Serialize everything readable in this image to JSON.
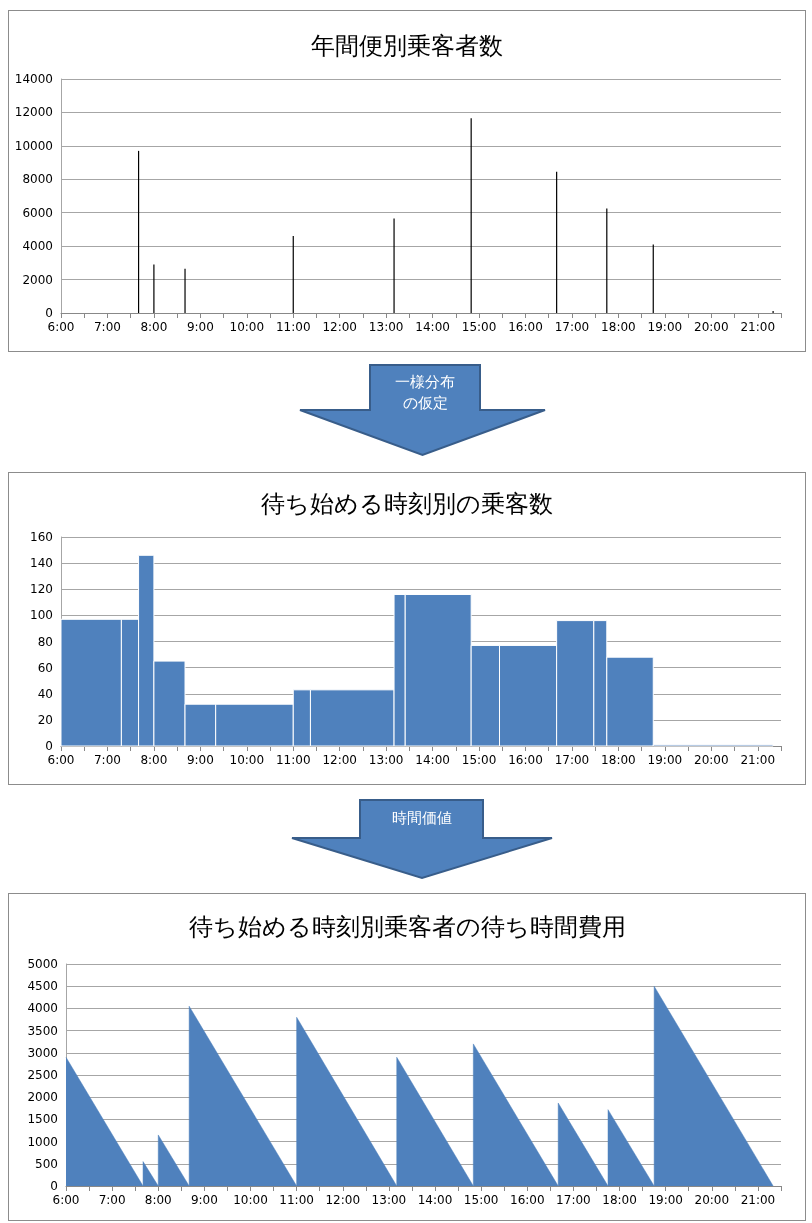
{
  "chart_data": [
    {
      "type": "bar",
      "title": "年間便別乗客者数",
      "color": "#000000",
      "x": [
        7.67,
        8.0,
        8.67,
        11.0,
        13.17,
        14.83,
        16.67,
        17.75,
        18.75,
        21.33
      ],
      "values": [
        9700,
        2900,
        2650,
        4600,
        5650,
        11650,
        8450,
        6250,
        4100,
        120
      ],
      "xlim": [
        6,
        21.5
      ],
      "xticks": [
        {
          "value": 6,
          "label": "6:00"
        },
        {
          "value": 6.5,
          "label": null
        },
        {
          "value": 7,
          "label": "7:00"
        },
        {
          "value": 7.5,
          "label": null
        },
        {
          "value": 8,
          "label": "8:00"
        },
        {
          "value": 8.5,
          "label": null
        },
        {
          "value": 9,
          "label": "9:00"
        },
        {
          "value": 9.5,
          "label": null
        },
        {
          "value": 10,
          "label": "10:00"
        },
        {
          "value": 10.5,
          "label": null
        },
        {
          "value": 11,
          "label": "11:00"
        },
        {
          "value": 11.5,
          "label": null
        },
        {
          "value": 12,
          "label": "12:00"
        },
        {
          "value": 12.5,
          "label": null
        },
        {
          "value": 13,
          "label": "13:00"
        },
        {
          "value": 13.5,
          "label": null
        },
        {
          "value": 14,
          "label": "14:00"
        },
        {
          "value": 14.5,
          "label": null
        },
        {
          "value": 15,
          "label": "15:00"
        },
        {
          "value": 15.5,
          "label": null
        },
        {
          "value": 16,
          "label": "16:00"
        },
        {
          "value": 16.5,
          "label": null
        },
        {
          "value": 17,
          "label": "17:00"
        },
        {
          "value": 17.5,
          "label": null
        },
        {
          "value": 18,
          "label": "18:00"
        },
        {
          "value": 18.5,
          "label": null
        },
        {
          "value": 19,
          "label": "19:00"
        },
        {
          "value": 19.5,
          "label": null
        },
        {
          "value": 20,
          "label": "20:00"
        },
        {
          "value": 20.5,
          "label": null
        },
        {
          "value": 21,
          "label": "21:00"
        },
        {
          "value": 21.5,
          "label": null
        }
      ],
      "ylim": [
        0,
        14000
      ],
      "yticks": [
        0,
        2000,
        4000,
        6000,
        8000,
        10000,
        12000,
        14000
      ],
      "grid": "y"
    },
    {
      "type": "histogram",
      "title": "待ち始める時刻別の乗客数",
      "color": "#4f81bd",
      "annotations": [
        "一様分布の仮定"
      ],
      "bins": [
        6.0,
        7.3,
        7.67,
        8.0,
        8.67,
        9.33,
        11.0,
        11.37,
        13.17,
        13.41,
        14.83,
        15.44,
        16.67,
        17.47,
        17.75,
        18.75,
        21.33
      ],
      "values": [
        97,
        97,
        146,
        65,
        32,
        32,
        43,
        43,
        116,
        116,
        77,
        77,
        96,
        96,
        68,
        1
      ],
      "xlim": [
        6,
        21.5
      ],
      "xticks": [
        {
          "value": 6,
          "label": "6:00"
        },
        {
          "value": 6.5,
          "label": null
        },
        {
          "value": 7,
          "label": "7:00"
        },
        {
          "value": 7.5,
          "label": null
        },
        {
          "value": 8,
          "label": "8:00"
        },
        {
          "value": 8.5,
          "label": null
        },
        {
          "value": 9,
          "label": "9:00"
        },
        {
          "value": 9.5,
          "label": null
        },
        {
          "value": 10,
          "label": "10:00"
        },
        {
          "value": 10.5,
          "label": null
        },
        {
          "value": 11,
          "label": "11:00"
        },
        {
          "value": 11.5,
          "label": null
        },
        {
          "value": 12,
          "label": "12:00"
        },
        {
          "value": 12.5,
          "label": null
        },
        {
          "value": 13,
          "label": "13:00"
        },
        {
          "value": 13.5,
          "label": null
        },
        {
          "value": 14,
          "label": "14:00"
        },
        {
          "value": 14.5,
          "label": null
        },
        {
          "value": 15,
          "label": "15:00"
        },
        {
          "value": 15.5,
          "label": null
        },
        {
          "value": 16,
          "label": "16:00"
        },
        {
          "value": 16.5,
          "label": null
        },
        {
          "value": 17,
          "label": "17:00"
        },
        {
          "value": 17.5,
          "label": null
        },
        {
          "value": 18,
          "label": "18:00"
        },
        {
          "value": 18.5,
          "label": null
        },
        {
          "value": 19,
          "label": "19:00"
        },
        {
          "value": 19.5,
          "label": null
        },
        {
          "value": 20,
          "label": "20:00"
        },
        {
          "value": 20.5,
          "label": null
        },
        {
          "value": 21,
          "label": "21:00"
        },
        {
          "value": 21.5,
          "label": null
        }
      ],
      "ylim": [
        0,
        160
      ],
      "yticks": [
        0,
        20,
        40,
        60,
        80,
        100,
        120,
        140,
        160
      ],
      "grid": "y"
    },
    {
      "type": "area",
      "title": "待ち始める時刻別乗客者の待ち時間費用",
      "color": "#4f81bd",
      "annotations": [
        "時間価値"
      ],
      "x": [
        6.0,
        7.67,
        7.67,
        8.0,
        8.0,
        8.67,
        8.67,
        11.0,
        11.0,
        13.17,
        13.17,
        14.83,
        14.83,
        16.67,
        16.67,
        17.75,
        17.75,
        18.75,
        18.75,
        21.33
      ],
      "values": [
        2900,
        0,
        550,
        0,
        1150,
        0,
        4050,
        0,
        3800,
        0,
        2900,
        0,
        3200,
        0,
        1870,
        0,
        1720,
        0,
        4500,
        0
      ],
      "xlim": [
        6,
        21.5
      ],
      "xticks": [
        {
          "value": 6,
          "label": "6:00"
        },
        {
          "value": 6.5,
          "label": null
        },
        {
          "value": 7,
          "label": "7:00"
        },
        {
          "value": 7.5,
          "label": null
        },
        {
          "value": 8,
          "label": "8:00"
        },
        {
          "value": 8.5,
          "label": null
        },
        {
          "value": 9,
          "label": "9:00"
        },
        {
          "value": 9.5,
          "label": null
        },
        {
          "value": 10,
          "label": "10:00"
        },
        {
          "value": 10.5,
          "label": null
        },
        {
          "value": 11,
          "label": "11:00"
        },
        {
          "value": 11.5,
          "label": null
        },
        {
          "value": 12,
          "label": "12:00"
        },
        {
          "value": 12.5,
          "label": null
        },
        {
          "value": 13,
          "label": "13:00"
        },
        {
          "value": 13.5,
          "label": null
        },
        {
          "value": 14,
          "label": "14:00"
        },
        {
          "value": 14.5,
          "label": null
        },
        {
          "value": 15,
          "label": "15:00"
        },
        {
          "value": 15.5,
          "label": null
        },
        {
          "value": 16,
          "label": "16:00"
        },
        {
          "value": 16.5,
          "label": null
        },
        {
          "value": 17,
          "label": "17:00"
        },
        {
          "value": 17.5,
          "label": null
        },
        {
          "value": 18,
          "label": "18:00"
        },
        {
          "value": 18.5,
          "label": null
        },
        {
          "value": 19,
          "label": "19:00"
        },
        {
          "value": 19.5,
          "label": null
        },
        {
          "value": 20,
          "label": "20:00"
        },
        {
          "value": 20.5,
          "label": null
        },
        {
          "value": 21,
          "label": "21:00"
        },
        {
          "value": 21.5,
          "label": null
        }
      ],
      "ylim": [
        0,
        5000
      ],
      "yticks": [
        0,
        500,
        1000,
        1500,
        2000,
        2500,
        3000,
        3500,
        4000,
        4500,
        5000
      ],
      "grid": "y"
    }
  ]
}
